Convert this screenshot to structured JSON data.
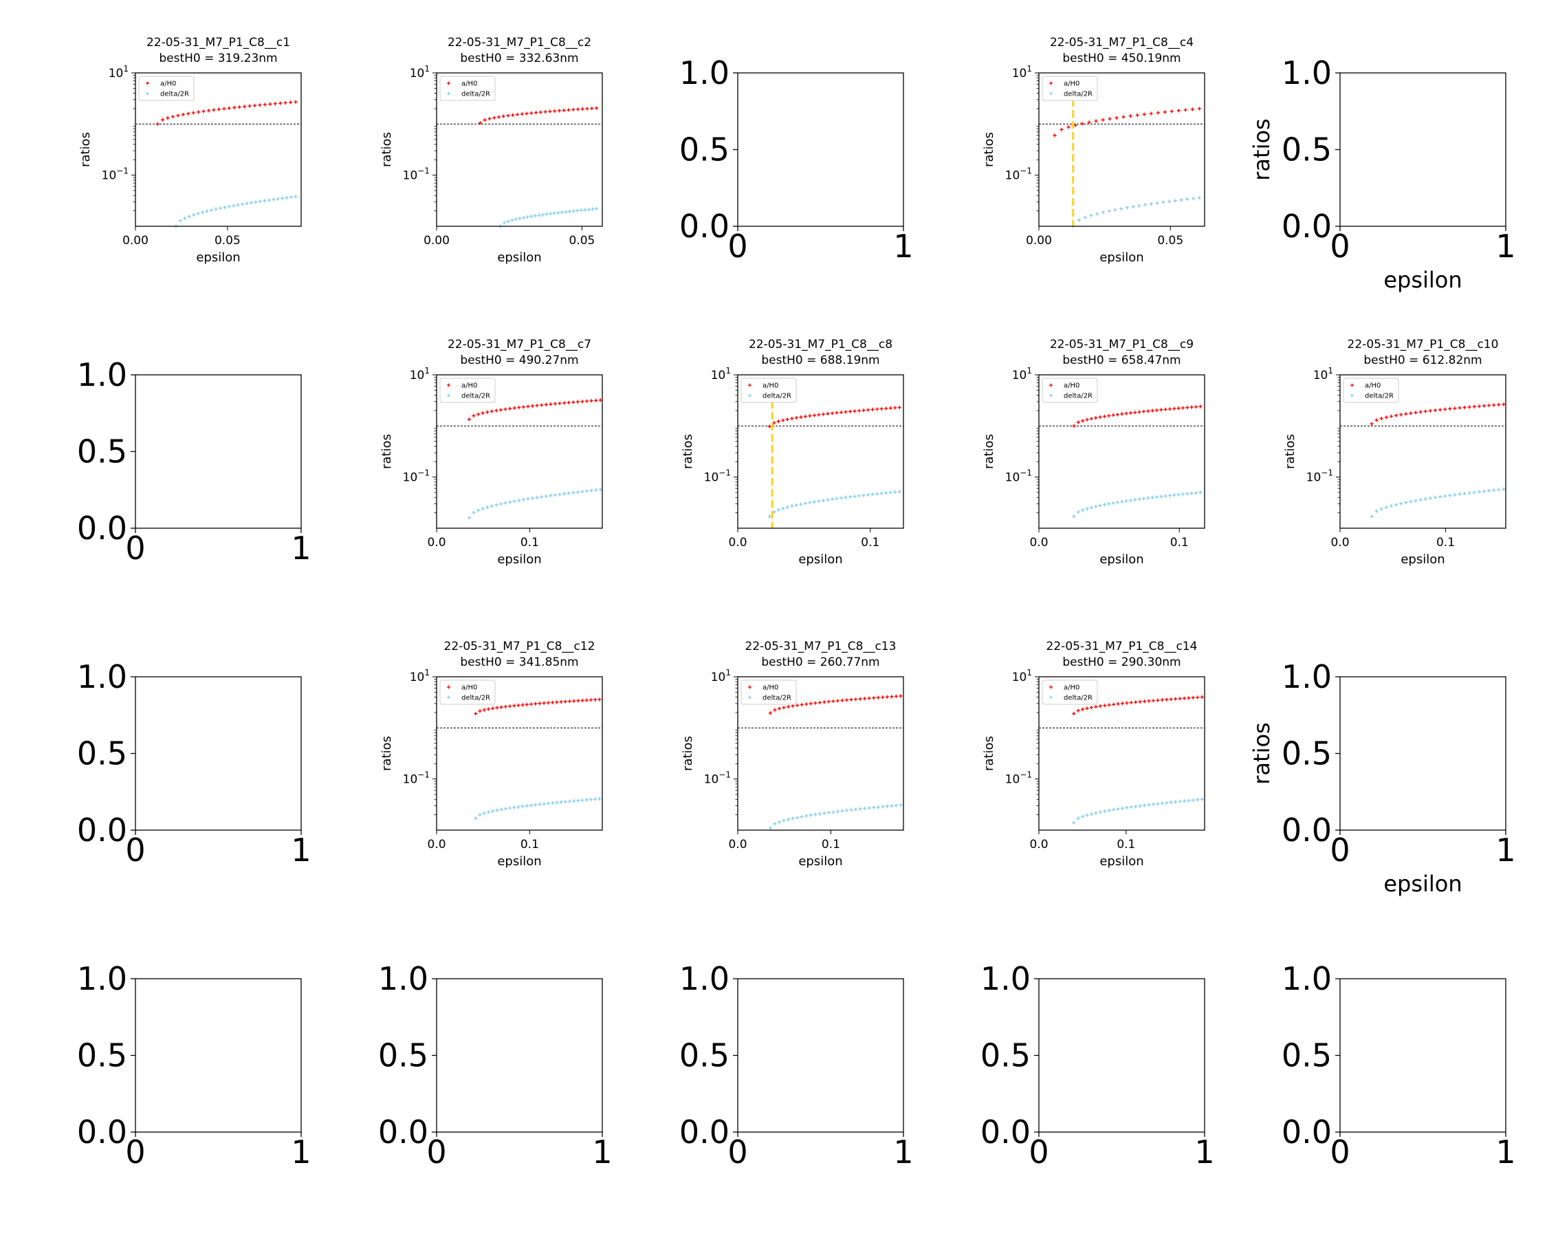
{
  "figure": {
    "layout": "4x5 grid of subplots",
    "colors": {
      "aH0": "#ff0000",
      "delta2R": "#87ceeb",
      "threshold_line": "#000000",
      "best_line": "#ffd21f"
    }
  },
  "chart_data": [
    {
      "type": "scatter",
      "title": "22-05-31_M7_P1_C8__c1",
      "subtitle": "bestH0 = 319.23nm",
      "xlabel": "epsilon",
      "ylabel": "ratios",
      "yscale": "log",
      "xlim": [
        0,
        0.09
      ],
      "ylim": [
        0.01,
        10
      ],
      "xticks": [
        0.0,
        0.05
      ],
      "xtick_labels": [
        "0.00",
        "0.05"
      ],
      "yticks": [
        0.1,
        10
      ],
      "legend": {
        "location": "upper-left",
        "entries": [
          "a/H0",
          "delta/2R"
        ]
      },
      "threshold": 1.0,
      "best_epsilon": null,
      "series": [
        {
          "name": "a/H0",
          "color": "#ff0000",
          "x_range": [
            0.012,
            0.087
          ],
          "y_range": [
            1.0,
            2.7
          ],
          "n": 28
        },
        {
          "name": "delta/2R",
          "color": "#87ceeb",
          "x_range": [
            0.022,
            0.087
          ],
          "y_range": [
            0.01,
            0.038
          ],
          "n": 28
        }
      ]
    },
    {
      "type": "scatter",
      "title": "22-05-31_M7_P1_C8__c2",
      "subtitle": "bestH0 = 332.63nm",
      "xlabel": "epsilon",
      "ylabel": "ratios",
      "yscale": "log",
      "xlim": [
        0,
        0.057
      ],
      "ylim": [
        0.01,
        10
      ],
      "xticks": [
        0.0,
        0.05
      ],
      "xtick_labels": [
        "0.00",
        "0.05"
      ],
      "yticks": [
        0.1,
        10
      ],
      "legend": {
        "location": "upper-left",
        "entries": [
          "a/H0",
          "delta/2R"
        ]
      },
      "threshold": 1.0,
      "best_epsilon": null,
      "series": [
        {
          "name": "a/H0",
          "color": "#ff0000",
          "x_range": [
            0.015,
            0.055
          ],
          "y_range": [
            1.05,
            2.05
          ],
          "n": 26
        },
        {
          "name": "delta/2R",
          "color": "#87ceeb",
          "x_range": [
            0.022,
            0.055
          ],
          "y_range": [
            0.01,
            0.022
          ],
          "n": 26
        }
      ]
    },
    null,
    {
      "type": "scatter",
      "title": "22-05-31_M7_P1_C8__c4",
      "subtitle": "bestH0 = 450.19nm",
      "xlabel": "epsilon",
      "ylabel": "ratios",
      "yscale": "log",
      "xlim": [
        0,
        0.063
      ],
      "ylim": [
        0.01,
        10
      ],
      "xticks": [
        0.0,
        0.05
      ],
      "xtick_labels": [
        "0.00",
        "0.05"
      ],
      "yticks": [
        0.1,
        10
      ],
      "legend": {
        "location": "upper-left",
        "entries": [
          "a/H0",
          "delta/2R"
        ]
      },
      "threshold": 1.0,
      "best_epsilon": 0.013,
      "series": [
        {
          "name": "a/H0",
          "color": "#ff0000",
          "x_range": [
            0.006,
            0.061
          ],
          "y_range": [
            0.6,
            2.0
          ],
          "n": 22
        },
        {
          "name": "delta/2R",
          "color": "#87ceeb",
          "x_range": [
            0.013,
            0.061
          ],
          "y_range": [
            0.01,
            0.036
          ],
          "n": 22
        }
      ]
    },
    null,
    null,
    {
      "type": "scatter",
      "title": "22-05-31_M7_P1_C8__c7",
      "subtitle": "bestH0 = 490.27nm",
      "xlabel": "epsilon",
      "ylabel": "ratios",
      "yscale": "log",
      "xlim": [
        0,
        0.178
      ],
      "ylim": [
        0.01,
        10
      ],
      "xticks": [
        0.0,
        0.1
      ],
      "xtick_labels": [
        "0.0",
        "0.1"
      ],
      "yticks": [
        0.1,
        10
      ],
      "legend": {
        "location": "upper-left",
        "entries": [
          "a/H0",
          "delta/2R"
        ]
      },
      "threshold": 1.0,
      "best_epsilon": null,
      "series": [
        {
          "name": "a/H0",
          "color": "#ff0000",
          "x_range": [
            0.035,
            0.176
          ],
          "y_range": [
            1.35,
            3.2
          ],
          "n": 30
        },
        {
          "name": "delta/2R",
          "color": "#87ceeb",
          "x_range": [
            0.035,
            0.176
          ],
          "y_range": [
            0.016,
            0.057
          ],
          "n": 30
        }
      ]
    },
    {
      "type": "scatter",
      "title": "22-05-31_M7_P1_C8__c8",
      "subtitle": "bestH0 = 688.19nm",
      "xlabel": "epsilon",
      "ylabel": "ratios",
      "yscale": "log",
      "xlim": [
        0,
        0.125
      ],
      "ylim": [
        0.01,
        10
      ],
      "xticks": [
        0.0,
        0.1
      ],
      "xtick_labels": [
        "0.0",
        "0.1"
      ],
      "yticks": [
        0.1,
        10
      ],
      "legend": {
        "location": "upper-left",
        "entries": [
          "a/H0",
          "delta/2R"
        ]
      },
      "threshold": 1.0,
      "best_epsilon": 0.026,
      "series": [
        {
          "name": "a/H0",
          "color": "#ff0000",
          "x_range": [
            0.024,
            0.122
          ],
          "y_range": [
            0.98,
            2.3
          ],
          "n": 30
        },
        {
          "name": "delta/2R",
          "color": "#87ceeb",
          "x_range": [
            0.024,
            0.122
          ],
          "y_range": [
            0.017,
            0.052
          ],
          "n": 30
        }
      ]
    },
    {
      "type": "scatter",
      "title": "22-05-31_M7_P1_C8__c9",
      "subtitle": "bestH0 = 658.47nm",
      "xlabel": "epsilon",
      "ylabel": "ratios",
      "yscale": "log",
      "xlim": [
        0,
        0.118
      ],
      "ylim": [
        0.01,
        10
      ],
      "xticks": [
        0.0,
        0.1
      ],
      "xtick_labels": [
        "0.0",
        "0.1"
      ],
      "yticks": [
        0.1,
        10
      ],
      "legend": {
        "location": "upper-left",
        "entries": [
          "a/H0",
          "delta/2R"
        ]
      },
      "threshold": 1.0,
      "best_epsilon": null,
      "series": [
        {
          "name": "a/H0",
          "color": "#ff0000",
          "x_range": [
            0.025,
            0.115
          ],
          "y_range": [
            1.0,
            2.4
          ],
          "n": 30
        },
        {
          "name": "delta/2R",
          "color": "#87ceeb",
          "x_range": [
            0.025,
            0.115
          ],
          "y_range": [
            0.017,
            0.05
          ],
          "n": 30
        }
      ]
    },
    {
      "type": "scatter",
      "title": "22-05-31_M7_P1_C8__c10",
      "subtitle": "bestH0 = 612.82nm",
      "xlabel": "epsilon",
      "ylabel": "ratios",
      "yscale": "log",
      "xlim": [
        0,
        0.157
      ],
      "ylim": [
        0.01,
        10
      ],
      "xticks": [
        0.0,
        0.1
      ],
      "xtick_labels": [
        "0.0",
        "0.1"
      ],
      "yticks": [
        0.1,
        10
      ],
      "legend": {
        "location": "upper-left",
        "entries": [
          "a/H0",
          "delta/2R"
        ]
      },
      "threshold": 1.0,
      "best_epsilon": null,
      "series": [
        {
          "name": "a/H0",
          "color": "#ff0000",
          "x_range": [
            0.03,
            0.155
          ],
          "y_range": [
            1.1,
            2.65
          ],
          "n": 28
        },
        {
          "name": "delta/2R",
          "color": "#87ceeb",
          "x_range": [
            0.03,
            0.155
          ],
          "y_range": [
            0.017,
            0.058
          ],
          "n": 28
        }
      ]
    },
    null,
    {
      "type": "scatter",
      "title": "22-05-31_M7_P1_C8__c12",
      "subtitle": "bestH0 = 341.85nm",
      "xlabel": "epsilon",
      "ylabel": "ratios",
      "yscale": "log",
      "xlim": [
        0,
        0.178
      ],
      "ylim": [
        0.01,
        10
      ],
      "xticks": [
        0.0,
        0.1
      ],
      "xtick_labels": [
        "0.0",
        "0.1"
      ],
      "yticks": [
        0.1,
        10
      ],
      "legend": {
        "location": "upper-left",
        "entries": [
          "a/H0",
          "delta/2R"
        ]
      },
      "threshold": 1.0,
      "best_epsilon": null,
      "series": [
        {
          "name": "a/H0",
          "color": "#ff0000",
          "x_range": [
            0.042,
            0.175
          ],
          "y_range": [
            1.9,
            3.6
          ],
          "n": 30
        },
        {
          "name": "delta/2R",
          "color": "#87ceeb",
          "x_range": [
            0.042,
            0.175
          ],
          "y_range": [
            0.017,
            0.041
          ],
          "n": 30
        }
      ]
    },
    {
      "type": "scatter",
      "title": "22-05-31_M7_P1_C8__c13",
      "subtitle": "bestH0 = 260.77nm",
      "xlabel": "epsilon",
      "ylabel": "ratios",
      "yscale": "log",
      "xlim": [
        0,
        0.178
      ],
      "ylim": [
        0.01,
        10
      ],
      "xticks": [
        0.0,
        0.1
      ],
      "xtick_labels": [
        "0.0",
        "0.1"
      ],
      "yticks": [
        0.1,
        10
      ],
      "legend": {
        "location": "upper-left",
        "entries": [
          "a/H0",
          "delta/2R"
        ]
      },
      "threshold": 1.0,
      "best_epsilon": null,
      "series": [
        {
          "name": "a/H0",
          "color": "#ff0000",
          "x_range": [
            0.035,
            0.175
          ],
          "y_range": [
            1.95,
            4.2
          ],
          "n": 30
        },
        {
          "name": "delta/2R",
          "color": "#87ceeb",
          "x_range": [
            0.035,
            0.175
          ],
          "y_range": [
            0.011,
            0.031
          ],
          "n": 30
        }
      ]
    },
    {
      "type": "scatter",
      "title": "22-05-31_M7_P1_C8__c14",
      "subtitle": "bestH0 = 290.30nm",
      "xlabel": "epsilon",
      "ylabel": "ratios",
      "yscale": "log",
      "xlim": [
        0,
        0.19
      ],
      "ylim": [
        0.01,
        10
      ],
      "xticks": [
        0.0,
        0.1
      ],
      "xtick_labels": [
        "0.0",
        "0.1"
      ],
      "yticks": [
        0.1,
        10
      ],
      "legend": {
        "location": "upper-left",
        "entries": [
          "a/H0",
          "delta/2R"
        ]
      },
      "threshold": 1.0,
      "best_epsilon": null,
      "series": [
        {
          "name": "a/H0",
          "color": "#ff0000",
          "x_range": [
            0.04,
            0.187
          ],
          "y_range": [
            1.9,
            4.0
          ],
          "n": 30
        },
        {
          "name": "delta/2R",
          "color": "#87ceeb",
          "x_range": [
            0.04,
            0.187
          ],
          "y_range": [
            0.014,
            0.04
          ],
          "n": 30
        }
      ]
    },
    null,
    null,
    null,
    null,
    null,
    null
  ],
  "empty_axes": {
    "xlim": [
      0,
      1
    ],
    "ylim": [
      0.0,
      1.0
    ],
    "xtick_labels": [
      "0",
      "1"
    ],
    "ytick_labels": [
      "0.0",
      "0.5",
      "1.0"
    ],
    "xlabel": "epsilon",
    "ylabel": "ratios",
    "show_xlabel": [
      2,
      4,
      5,
      10,
      14,
      15
    ],
    "show_ylabel": [
      2,
      5,
      10,
      14,
      15
    ]
  }
}
